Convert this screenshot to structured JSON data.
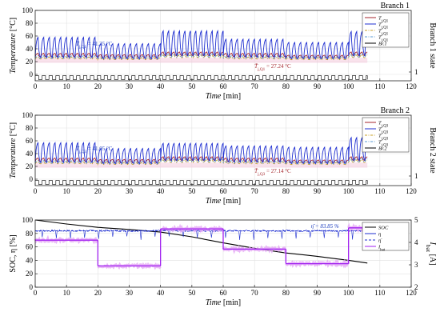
{
  "chart_data": [
    {
      "type": "line",
      "title": "Branch 1",
      "ylabel": "Temperature [°C]",
      "xlabel": "Time [min]",
      "y2label": "Branch 1 state",
      "xlim": [
        0,
        120
      ],
      "ylim": [
        -10,
        100
      ],
      "xticks": [
        0,
        10,
        20,
        30,
        40,
        50,
        60,
        70,
        80,
        90,
        100,
        110,
        120
      ],
      "yticks": [
        0,
        20,
        40,
        60,
        80,
        100
      ],
      "y2ticks": [
        1
      ],
      "grid": true,
      "legend_position": "top-right",
      "legend": [
        "T_j,Q1",
        "T_j,Q1",
        "T_j,Q1",
        "T_j,Q1",
        "Br.1"
      ],
      "annotations": [
        {
          "text": "T̄_j,Q1 = 41.35 °C",
          "x": 13,
          "y": 45,
          "color": "#1f3fbf"
        },
        {
          "text": "T̄_j,Q1 = 27.24 °C",
          "x": 70,
          "y": 10,
          "color": "#a4262c"
        }
      ],
      "series": [
        {
          "color": "#a4262c",
          "style": "solid",
          "segments": [
            [
              0,
              20,
              27,
              33,
              22
            ],
            [
              20,
              40,
              25,
              31,
              21
            ],
            [
              40,
              60,
              29,
              35,
              23
            ],
            [
              60,
              80,
              27,
              33,
              22
            ],
            [
              80,
              100,
              25,
              30,
              21
            ],
            [
              100,
              106,
              29,
              35,
              23
            ]
          ]
        },
        {
          "color": "#1f2fd0",
          "style": "solid",
          "segments": [
            [
              0,
              20,
              26,
              58,
              22
            ],
            [
              20,
              40,
              24,
              48,
              21
            ],
            [
              40,
              60,
              29,
              68,
              23
            ],
            [
              60,
              80,
              27,
              55,
              22
            ],
            [
              80,
              100,
              24,
              50,
              21
            ],
            [
              100,
              106,
              29,
              67,
              23
            ]
          ]
        },
        {
          "color": "#c9a227",
          "style": "dashdot",
          "segments": [
            [
              0,
              20,
              24,
              27,
              22
            ],
            [
              20,
              40,
              23,
              26,
              21
            ],
            [
              40,
              60,
              26,
              30,
              23
            ],
            [
              60,
              80,
              24,
              27,
              22
            ],
            [
              80,
              100,
              23,
              26,
              21
            ],
            [
              100,
              106,
              26,
              30,
              23
            ]
          ]
        },
        {
          "color": "#5b9bd5",
          "style": "dashdot",
          "segments": [
            [
              0,
              20,
              25,
              29,
              22
            ],
            [
              20,
              40,
              24,
              28,
              21
            ],
            [
              40,
              60,
              27,
              32,
              23
            ],
            [
              60,
              80,
              25,
              29,
              22
            ],
            [
              80,
              100,
              24,
              28,
              21
            ],
            [
              100,
              106,
              27,
              32,
              23
            ]
          ]
        },
        {
          "name_index": 4,
          "color": "#000000",
          "style": "square",
          "period": 1.1,
          "state_low": -8,
          "state_high": -2
        }
      ],
      "band": {
        "color": "#f4c6d9",
        "y0": 18,
        "y1": 26
      }
    },
    {
      "type": "line",
      "title": "Branch 2",
      "ylabel": "Temperature [°C]",
      "xlabel": "Time [min]",
      "y2label": "Branch 2 state",
      "xlim": [
        0,
        120
      ],
      "ylim": [
        -10,
        100
      ],
      "xticks": [
        0,
        10,
        20,
        30,
        40,
        50,
        60,
        70,
        80,
        90,
        100,
        110,
        120
      ],
      "yticks": [
        0,
        20,
        40,
        60,
        80,
        100
      ],
      "y2ticks": [
        1
      ],
      "grid": true,
      "legend_position": "top-right",
      "legend": [
        "T_j,Q3",
        "T_j,Q3",
        "T_j,Q3",
        "T_j,Q3",
        "Br.2"
      ],
      "annotations": [
        {
          "text": "T̄_j,Q3 = 41.05 °C",
          "x": 13,
          "y": 45,
          "color": "#1f3fbf"
        },
        {
          "text": "T̄_j,Q3 = 27.14 °C",
          "x": 70,
          "y": 10,
          "color": "#a4262c"
        }
      ],
      "series": [
        {
          "color": "#a4262c",
          "style": "solid",
          "segments": [
            [
              0,
              20,
              27,
              33,
              22
            ],
            [
              20,
              40,
              25,
              31,
              21
            ],
            [
              40,
              60,
              29,
              35,
              23
            ],
            [
              60,
              80,
              27,
              33,
              22
            ],
            [
              80,
              100,
              25,
              30,
              21
            ],
            [
              100,
              106,
              29,
              35,
              23
            ]
          ]
        },
        {
          "color": "#1f2fd0",
          "style": "solid",
          "segments": [
            [
              0,
              20,
              26,
              57,
              22
            ],
            [
              20,
              40,
              24,
              48,
              21
            ],
            [
              40,
              60,
              29,
              56,
              23
            ],
            [
              60,
              80,
              27,
              52,
              22
            ],
            [
              80,
              100,
              24,
              50,
              21
            ],
            [
              100,
              106,
              29,
              65,
              23
            ]
          ]
        },
        {
          "color": "#c9a227",
          "style": "dashdot",
          "segments": [
            [
              0,
              20,
              24,
              27,
              22
            ],
            [
              20,
              40,
              23,
              26,
              21
            ],
            [
              40,
              60,
              26,
              30,
              23
            ],
            [
              60,
              80,
              24,
              27,
              22
            ],
            [
              80,
              100,
              23,
              26,
              21
            ],
            [
              100,
              106,
              26,
              30,
              23
            ]
          ]
        },
        {
          "color": "#5b9bd5",
          "style": "dashdot",
          "segments": [
            [
              0,
              20,
              25,
              29,
              22
            ],
            [
              20,
              40,
              24,
              28,
              21
            ],
            [
              40,
              60,
              27,
              32,
              23
            ],
            [
              60,
              80,
              25,
              29,
              22
            ],
            [
              80,
              100,
              24,
              28,
              21
            ],
            [
              100,
              106,
              27,
              32,
              23
            ]
          ]
        },
        {
          "name_index": 4,
          "color": "#000000",
          "style": "square",
          "period": 1.1,
          "state_low": -8,
          "state_high": -2
        }
      ],
      "band": {
        "color": "#f4c6d9",
        "y0": 18,
        "y1": 26
      }
    },
    {
      "type": "line",
      "title": "",
      "ylabel": "SOC, η [%]",
      "xlabel": "Time [min]",
      "y2label": "I_bat [A]",
      "xlim": [
        0,
        120
      ],
      "ylim": [
        0,
        100
      ],
      "y2lim": [
        2,
        5
      ],
      "xticks": [
        0,
        10,
        20,
        30,
        40,
        50,
        60,
        70,
        80,
        90,
        100,
        110,
        120
      ],
      "yticks": [
        0,
        20,
        40,
        60,
        80,
        100
      ],
      "y2ticks": [
        2,
        3,
        4,
        5
      ],
      "grid": true,
      "legend_position": "top-right",
      "legend": [
        "SOC",
        "η",
        "η̄",
        "I_bat"
      ],
      "annotations": [
        {
          "text": "η̄ = 83.85 %",
          "x": 88,
          "y": 88,
          "color": "#1f3fbf"
        }
      ],
      "series": [
        {
          "name": "SOC",
          "axis": "left",
          "color": "#000000",
          "x": [
            0,
            10,
            20,
            30,
            40,
            50,
            60,
            70,
            80,
            90,
            100,
            106
          ],
          "values": [
            100,
            94,
            89,
            86,
            82,
            75,
            66,
            58,
            51,
            46,
            40,
            36
          ]
        },
        {
          "name": "η",
          "axis": "left",
          "color": "#1f2fd0",
          "level": 84,
          "spikes": 70
        },
        {
          "name": "η̄",
          "axis": "left",
          "color": "#1f2fd0",
          "style": "dashed",
          "level": 83.85
        },
        {
          "name": "I_bat",
          "axis": "right",
          "color": "#a020f0",
          "steps": [
            [
              0,
              20,
              4.1
            ],
            [
              20,
              40,
              2.95
            ],
            [
              40,
              60,
              4.6
            ],
            [
              60,
              80,
              3.7
            ],
            [
              80,
              100,
              3.05
            ],
            [
              100,
              106,
              4.65
            ]
          ]
        }
      ]
    }
  ]
}
